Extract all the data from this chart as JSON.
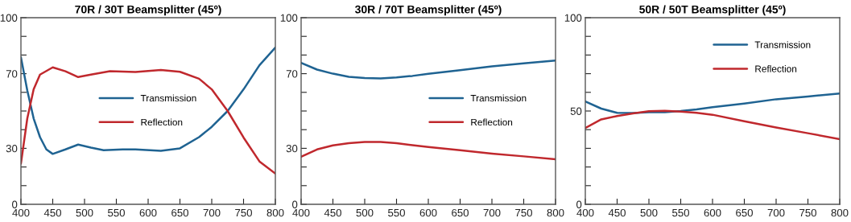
{
  "chart_data": [
    {
      "type": "line",
      "title": "70R / 30T Beamsplitter (45º)",
      "xlim": [
        400,
        800
      ],
      "xticks": [
        400,
        450,
        500,
        550,
        600,
        650,
        700,
        750,
        800
      ],
      "ylim": [
        0,
        100
      ],
      "yticks": [
        0,
        {
          "value": 10,
          "label": null
        },
        {
          "value": 20,
          "label": null
        },
        30,
        {
          "value": 40,
          "label": null
        },
        {
          "value": 50,
          "label": null
        },
        {
          "value": 60,
          "label": null
        },
        70,
        {
          "value": 80,
          "label": null
        },
        {
          "value": 90,
          "label": null
        },
        100
      ],
      "legend": "center",
      "grid": false,
      "series": [
        {
          "name": "Transmission",
          "color": "#1f6392",
          "x": [
            400,
            410,
            420,
            430,
            440,
            450,
            470,
            490,
            510,
            530,
            560,
            580,
            620,
            650,
            680,
            700,
            725,
            750,
            775,
            800
          ],
          "values": [
            78.8,
            61,
            46,
            36,
            29.4,
            27,
            29.4,
            32,
            30.4,
            29,
            29.4,
            29.4,
            28.7,
            30,
            36,
            41.5,
            50,
            61.6,
            74.5,
            84
          ]
        },
        {
          "name": "Reflection",
          "color": "#c0282d",
          "x": [
            400,
            410,
            420,
            430,
            450,
            470,
            490,
            510,
            540,
            580,
            620,
            650,
            680,
            700,
            725,
            750,
            775,
            800
          ],
          "values": [
            21.8,
            46,
            61.6,
            69.5,
            73.4,
            71.3,
            68.2,
            69.5,
            71.3,
            70.9,
            72,
            71,
            67.3,
            61.6,
            50,
            35.8,
            23,
            16.5
          ]
        }
      ]
    },
    {
      "type": "line",
      "title": "30R / 70T Beamsplitter (45º)",
      "xlim": [
        400,
        800
      ],
      "xticks": [
        400,
        450,
        500,
        550,
        600,
        650,
        700,
        750,
        800
      ],
      "ylim": [
        0,
        100
      ],
      "yticks": [
        0,
        {
          "value": 10,
          "label": null
        },
        {
          "value": 20,
          "label": null
        },
        30,
        {
          "value": 40,
          "label": null
        },
        {
          "value": 50,
          "label": null
        },
        {
          "value": 60,
          "label": null
        },
        70,
        {
          "value": 80,
          "label": null
        },
        {
          "value": 90,
          "label": null
        },
        100
      ],
      "legend": "center right",
      "grid": false,
      "series": [
        {
          "name": "Transmission",
          "color": "#1f6392",
          "x": [
            400,
            425,
            450,
            475,
            500,
            525,
            550,
            575,
            600,
            650,
            700,
            750,
            800
          ],
          "values": [
            75.8,
            72.2,
            70,
            68.3,
            67.7,
            67.5,
            68,
            68.8,
            69.9,
            71.9,
            73.9,
            75.5,
            77.1
          ]
        },
        {
          "name": "Reflection",
          "color": "#c0282d",
          "x": [
            400,
            425,
            450,
            475,
            500,
            525,
            550,
            575,
            600,
            650,
            700,
            750,
            800
          ],
          "values": [
            25.5,
            29.4,
            31.6,
            32.8,
            33.4,
            33.4,
            32.8,
            31.7,
            30.7,
            29,
            27.2,
            25.7,
            24.1
          ]
        }
      ]
    },
    {
      "type": "line",
      "title": "50R / 50T Beamsplitter (45º)",
      "xlim": [
        400,
        800
      ],
      "xticks": [
        400,
        450,
        500,
        550,
        600,
        650,
        700,
        750,
        800
      ],
      "ylim": [
        0,
        100
      ],
      "yticks": [
        0,
        {
          "value": 10,
          "label": null
        },
        {
          "value": 20,
          "label": null
        },
        {
          "value": 30,
          "label": null
        },
        {
          "value": 40,
          "label": null
        },
        50,
        {
          "value": 60,
          "label": null
        },
        {
          "value": 70,
          "label": null
        },
        {
          "value": 80,
          "label": null
        },
        {
          "value": 90,
          "label": null
        },
        100
      ],
      "legend": "upper right",
      "grid": false,
      "series": [
        {
          "name": "Transmission",
          "color": "#1f6392",
          "x": [
            400,
            425,
            450,
            475,
            500,
            525,
            550,
            575,
            600,
            650,
            700,
            750,
            800
          ],
          "values": [
            55.1,
            51.3,
            49,
            48.9,
            49.3,
            49.4,
            50,
            50.9,
            52,
            54,
            56.3,
            57.8,
            59.4
          ]
        },
        {
          "name": "Reflection",
          "color": "#c0282d",
          "x": [
            400,
            425,
            450,
            475,
            500,
            525,
            550,
            575,
            600,
            650,
            700,
            750,
            800
          ],
          "values": [
            40.9,
            45.5,
            47.3,
            48.7,
            49.9,
            50.1,
            49.7,
            49,
            48,
            44.5,
            41.2,
            38.1,
            34.9
          ]
        }
      ]
    }
  ]
}
